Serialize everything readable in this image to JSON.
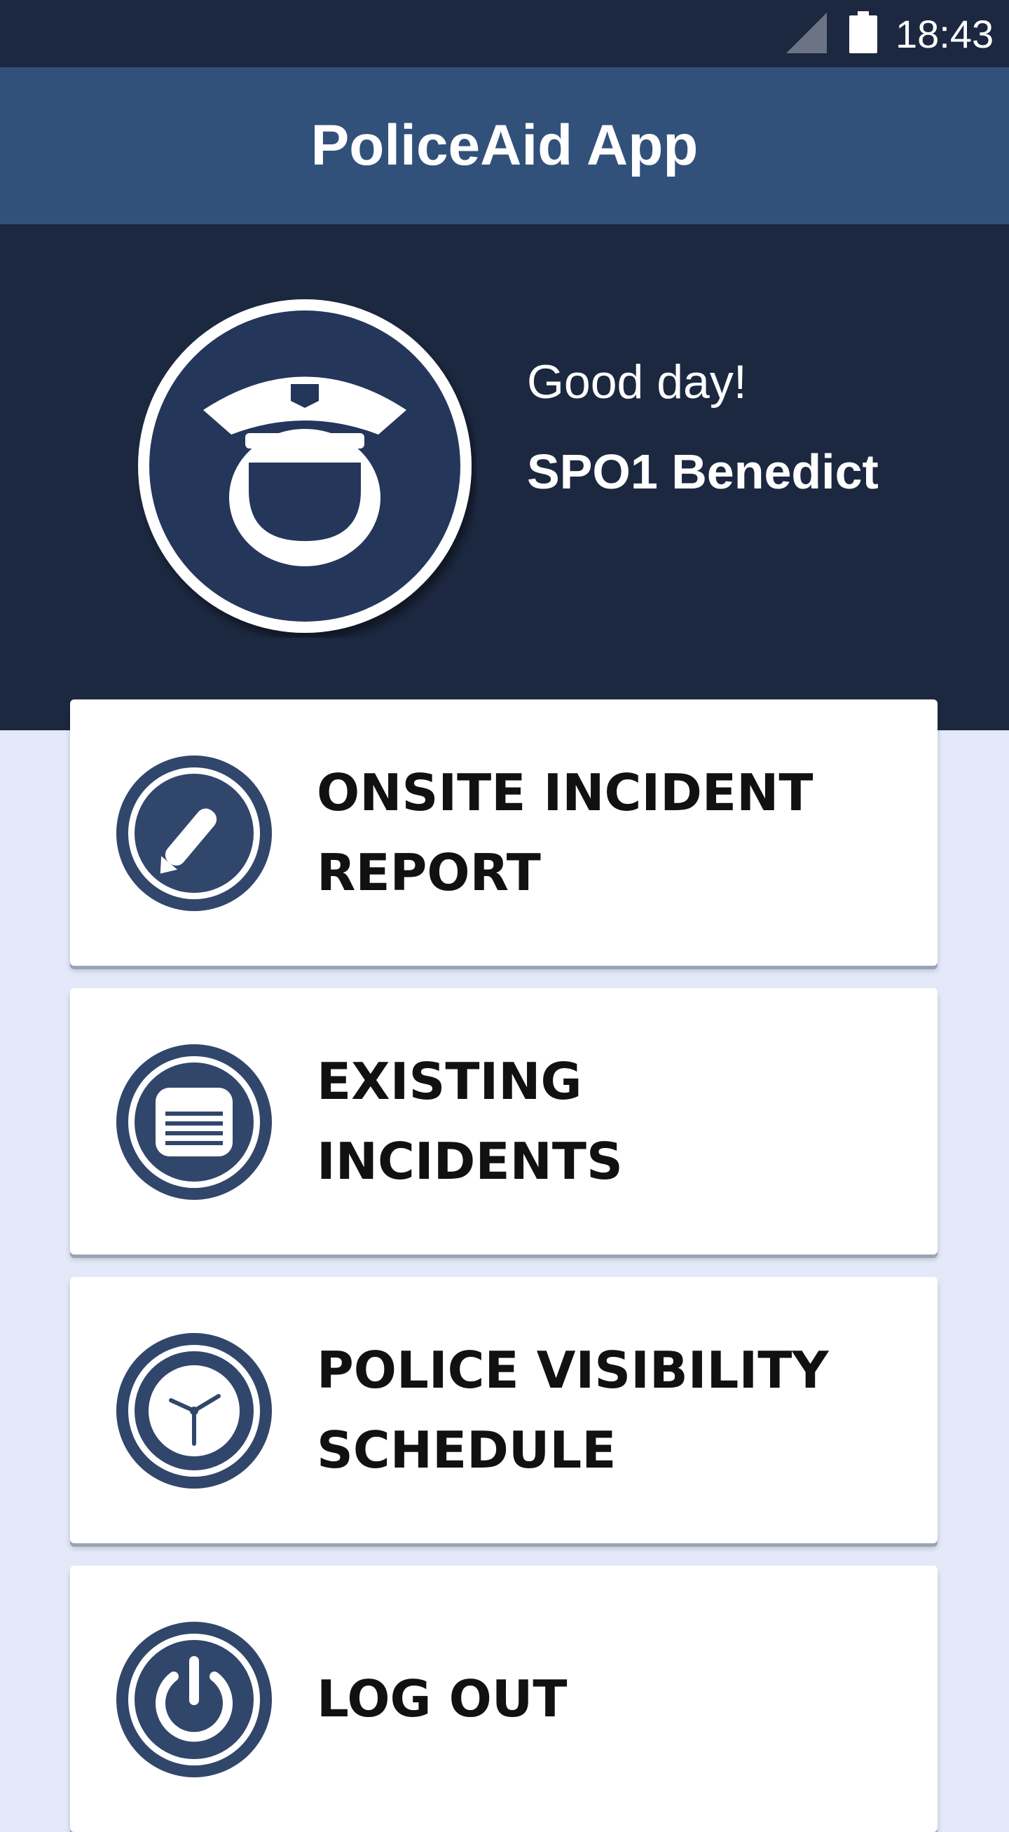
{
  "status_bar": {
    "time": "18:43",
    "icons": [
      "signal-icon",
      "battery-icon"
    ]
  },
  "app_bar": {
    "title": "PoliceAid App"
  },
  "profile": {
    "greeting": "Good day!",
    "name": "SPO1 Benedict",
    "avatar_icon": "police-officer-avatar-icon"
  },
  "menu": {
    "items": [
      {
        "label": "ONSITE INCIDENT\nREPORT",
        "icon": "pencil-icon"
      },
      {
        "label": "EXISTING\nINCIDENTS",
        "icon": "list-icon"
      },
      {
        "label": "POLICE VISIBILITY\nSCHEDULE",
        "icon": "clock-icon"
      },
      {
        "label": "LOG OUT",
        "icon": "power-icon"
      }
    ]
  },
  "colors": {
    "status_bar": "#1c2840",
    "app_bar": "#31517a",
    "header": "#1c2840",
    "icon_navy": "#31466b",
    "page_background": "#e4e9fa"
  }
}
